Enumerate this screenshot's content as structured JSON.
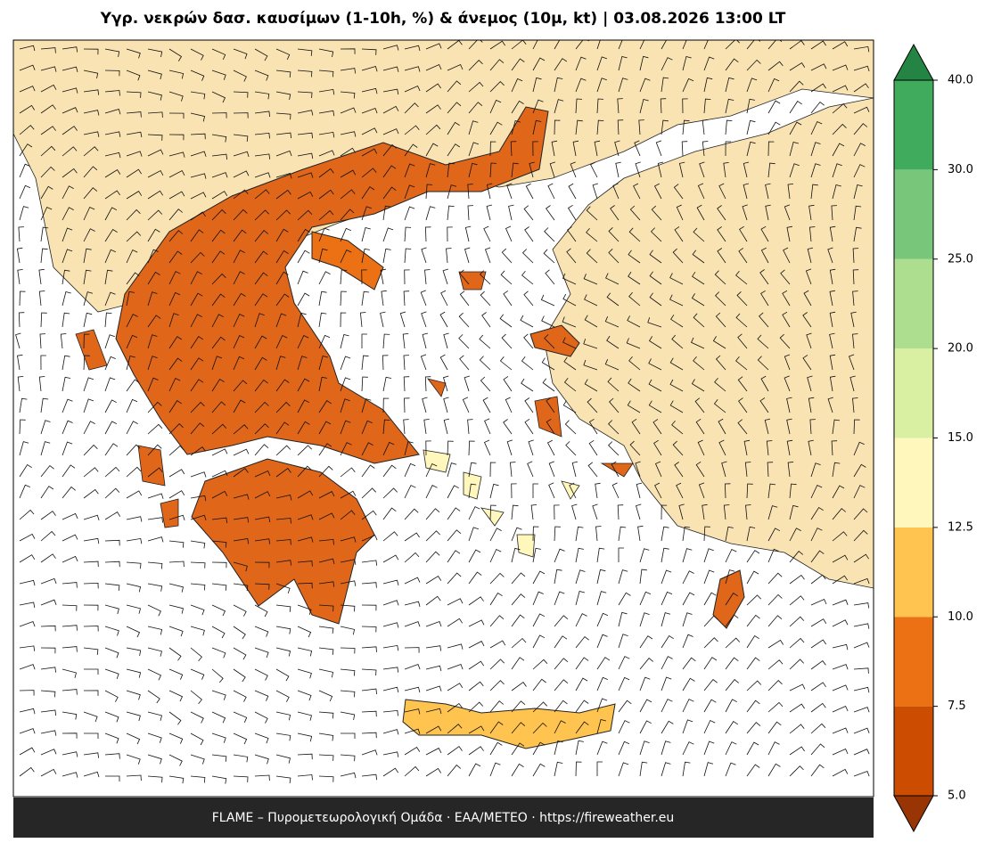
{
  "title": "Υγρ. νεκρών δασ. καυσίμων (1-10h, %) & άνεμος (10μ, kt)  |  03.08.2026 13:00 LT",
  "footer": "FLAME – Πυρομετεωρολογική Ομάδα · ΕΑΑ/METEO · https://fireweather.eu",
  "colorbar": {
    "ticks": [
      {
        "value": 5,
        "label": "5.0"
      },
      {
        "value": 7.5,
        "label": "7.5"
      },
      {
        "value": 10,
        "label": "10.0"
      },
      {
        "value": 12.5,
        "label": "12.5"
      },
      {
        "value": 15,
        "label": "15.0"
      },
      {
        "value": 20,
        "label": "20.0"
      },
      {
        "value": 25,
        "label": "25.0"
      },
      {
        "value": 30,
        "label": "30.0"
      },
      {
        "value": 40,
        "label": "40.0"
      }
    ],
    "colors": [
      "#cc4c02",
      "#ec7014",
      "#fec44f",
      "#fff7bc",
      "#d9f0a3",
      "#addd8e",
      "#78c679",
      "#41ab5d"
    ],
    "under_color": "#993404",
    "over_color": "#238443"
  }
}
